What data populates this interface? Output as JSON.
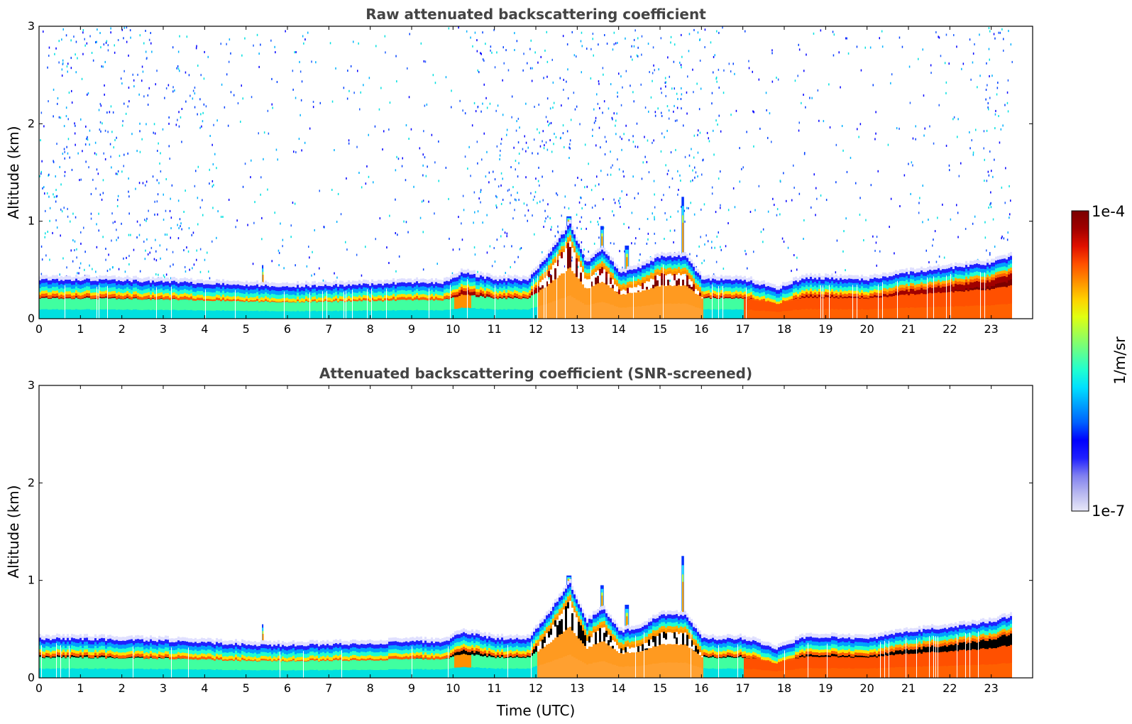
{
  "chart_data": [
    {
      "type": "heatmap",
      "title": "Raw attenuated backscattering coefficient",
      "xlabel": "",
      "ylabel": "Altitude (km)",
      "xlim": [
        0,
        24
      ],
      "ylim": [
        0,
        3
      ],
      "xticks": [
        "0",
        "1",
        "2",
        "3",
        "4",
        "5",
        "6",
        "7",
        "8",
        "9",
        "10",
        "11",
        "12",
        "13",
        "14",
        "15",
        "16",
        "17",
        "18",
        "19",
        "20",
        "21",
        "22",
        "23"
      ],
      "yticks": [
        "0",
        "1",
        "2",
        "3"
      ],
      "screened": false,
      "data_end_hour": 23.5
    },
    {
      "type": "heatmap",
      "title": "Attenuated backscattering coefficient (SNR-screened)",
      "xlabel": "Time (UTC)",
      "ylabel": "Altitude (km)",
      "xlim": [
        0,
        24
      ],
      "ylim": [
        0,
        3
      ],
      "xticks": [
        "0",
        "1",
        "2",
        "3",
        "4",
        "5",
        "6",
        "7",
        "8",
        "9",
        "10",
        "11",
        "12",
        "13",
        "14",
        "15",
        "16",
        "17",
        "18",
        "19",
        "20",
        "21",
        "22",
        "23"
      ],
      "yticks": [
        "0",
        "1",
        "2",
        "3"
      ],
      "screened": true,
      "data_end_hour": 23.5
    }
  ],
  "layer_profile": {
    "hours": [
      0,
      1,
      2,
      3,
      4,
      5,
      6,
      7,
      8,
      9,
      9.8,
      10.2,
      11,
      11.8,
      12.3,
      12.8,
      13.2,
      13.6,
      14.0,
      14.5,
      15.0,
      15.6,
      16.0,
      17.0,
      17.8,
      18.5,
      20,
      21,
      22,
      23,
      23.5
    ],
    "top_km": [
      0.38,
      0.38,
      0.37,
      0.36,
      0.34,
      0.32,
      0.31,
      0.32,
      0.33,
      0.35,
      0.35,
      0.45,
      0.38,
      0.38,
      0.65,
      0.95,
      0.55,
      0.7,
      0.45,
      0.5,
      0.62,
      0.62,
      0.38,
      0.38,
      0.28,
      0.4,
      0.38,
      0.45,
      0.5,
      0.55,
      0.62
    ]
  },
  "colorbar": {
    "label": "1/m/sr",
    "max_label": "1e-4",
    "min_label": "1e-7",
    "colors": [
      "#e8e8f8",
      "#b8b8f0",
      "#8080f0",
      "#2020ff",
      "#0000ff",
      "#0060ff",
      "#00a0ff",
      "#00e0ff",
      "#20ffd0",
      "#60ff90",
      "#a0ff50",
      "#e0ff10",
      "#ffd000",
      "#ff9000",
      "#ff5000",
      "#e01000",
      "#a00000",
      "#7a0000"
    ]
  }
}
